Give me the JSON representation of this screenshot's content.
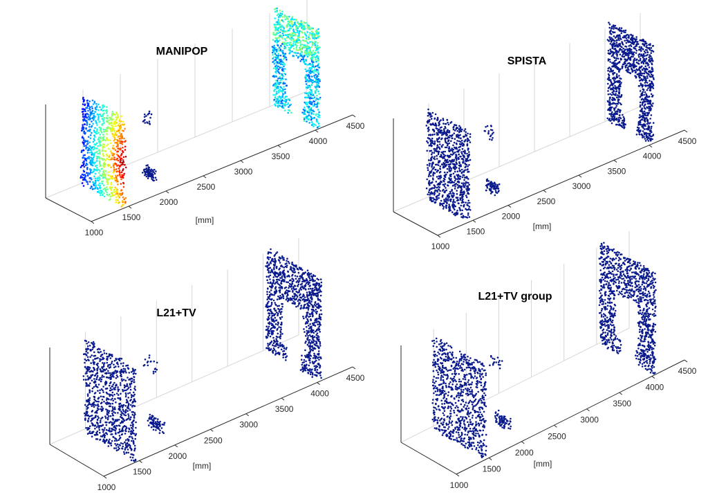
{
  "chart_data": [
    {
      "type": "scatter",
      "title": "MANIPOP",
      "xlabel": "[mm]",
      "xticks": [
        "1000",
        "1500",
        "2000",
        "2500",
        "3000",
        "3500",
        "4000",
        "4500"
      ],
      "xlim": [
        1000,
        4500
      ],
      "colormap": "jet",
      "surfaces": [
        {
          "depth_mm": 1450,
          "shape": "plane",
          "coloring": "intensity",
          "note_color": "#e8301a"
        },
        {
          "depth_mm": 1950,
          "shape": "blob"
        },
        {
          "depth_mm": 2150,
          "shape": "small"
        },
        {
          "depth_mm": 4050,
          "shape": "frame",
          "coloring": "intensity"
        }
      ]
    },
    {
      "type": "scatter",
      "title": "SPISTA",
      "xlabel": "[mm]",
      "xticks": [
        "1000",
        "1500",
        "2000",
        "2500",
        "3000",
        "3500",
        "4000",
        "4500"
      ],
      "xlim": [
        1000,
        4500
      ],
      "surfaces": [
        {
          "depth_mm": 1450,
          "shape": "plane"
        },
        {
          "depth_mm": 1950,
          "shape": "blob"
        },
        {
          "depth_mm": 2150,
          "shape": "small"
        },
        {
          "depth_mm": 4050,
          "shape": "frame"
        }
      ]
    },
    {
      "type": "scatter",
      "title": "L21+TV",
      "xlabel": "[mm]",
      "xticks": [
        "1000",
        "1500",
        "2000",
        "2500",
        "3000",
        "3500",
        "4000",
        "4500"
      ],
      "xlim": [
        1000,
        4500
      ],
      "surfaces": [
        {
          "depth_mm": 1450,
          "shape": "plane"
        },
        {
          "depth_mm": 1950,
          "shape": "blob"
        },
        {
          "depth_mm": 2150,
          "shape": "small"
        },
        {
          "depth_mm": 4050,
          "shape": "frame"
        }
      ]
    },
    {
      "type": "scatter",
      "title": "L21+TV group",
      "xlabel": "[mm]",
      "xticks": [
        "1000",
        "1500",
        "2000",
        "2500",
        "3000",
        "3500",
        "4000",
        "4500"
      ],
      "xlim": [
        1000,
        4500
      ],
      "surfaces": [
        {
          "depth_mm": 1450,
          "shape": "plane"
        },
        {
          "depth_mm": 1950,
          "shape": "blob"
        },
        {
          "depth_mm": 2150,
          "shape": "small"
        },
        {
          "depth_mm": 4050,
          "shape": "frame"
        }
      ]
    }
  ],
  "colors": {
    "point": "#0a1a8c",
    "axis": "#262626",
    "grid": "#d6d6d6"
  }
}
